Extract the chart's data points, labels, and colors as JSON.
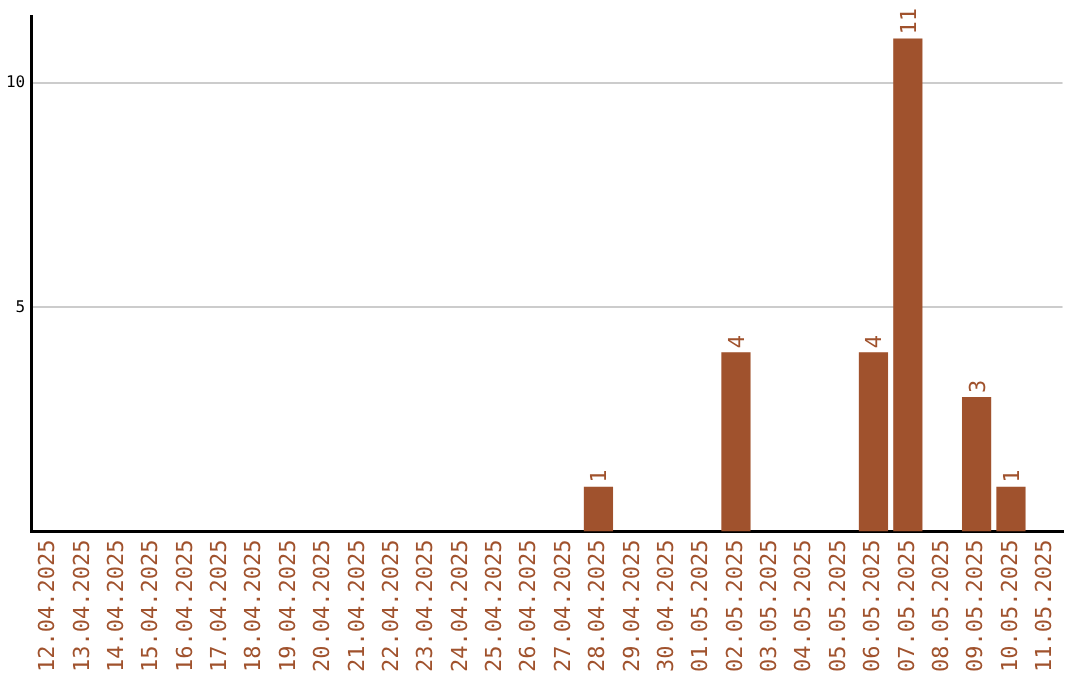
{
  "chart_data": {
    "type": "bar",
    "categories": [
      "12.04.2025",
      "13.04.2025",
      "14.04.2025",
      "15.04.2025",
      "16.04.2025",
      "17.04.2025",
      "18.04.2025",
      "19.04.2025",
      "20.04.2025",
      "21.04.2025",
      "22.04.2025",
      "23.04.2025",
      "24.04.2025",
      "25.04.2025",
      "26.04.2025",
      "27.04.2025",
      "28.04.2025",
      "29.04.2025",
      "30.04.2025",
      "01.05.2025",
      "02.05.2025",
      "03.05.2025",
      "04.05.2025",
      "05.05.2025",
      "06.05.2025",
      "07.05.2025",
      "08.05.2025",
      "09.05.2025",
      "10.05.2025",
      "11.05.2025"
    ],
    "values": [
      0,
      0,
      0,
      0,
      0,
      0,
      0,
      0,
      0,
      0,
      0,
      0,
      0,
      0,
      0,
      0,
      1,
      0,
      0,
      0,
      4,
      0,
      0,
      0,
      4,
      11,
      0,
      3,
      1,
      0
    ],
    "value_labels": [
      null,
      null,
      null,
      null,
      null,
      null,
      null,
      null,
      null,
      null,
      null,
      null,
      null,
      null,
      null,
      null,
      "1",
      null,
      null,
      null,
      "4",
      null,
      null,
      null,
      "4",
      "11",
      null,
      "3",
      "1",
      null
    ],
    "color": "#a0522d",
    "ylim": [
      0,
      11.5
    ],
    "yticks": [
      5,
      10
    ],
    "grid": "y",
    "legend": false
  }
}
